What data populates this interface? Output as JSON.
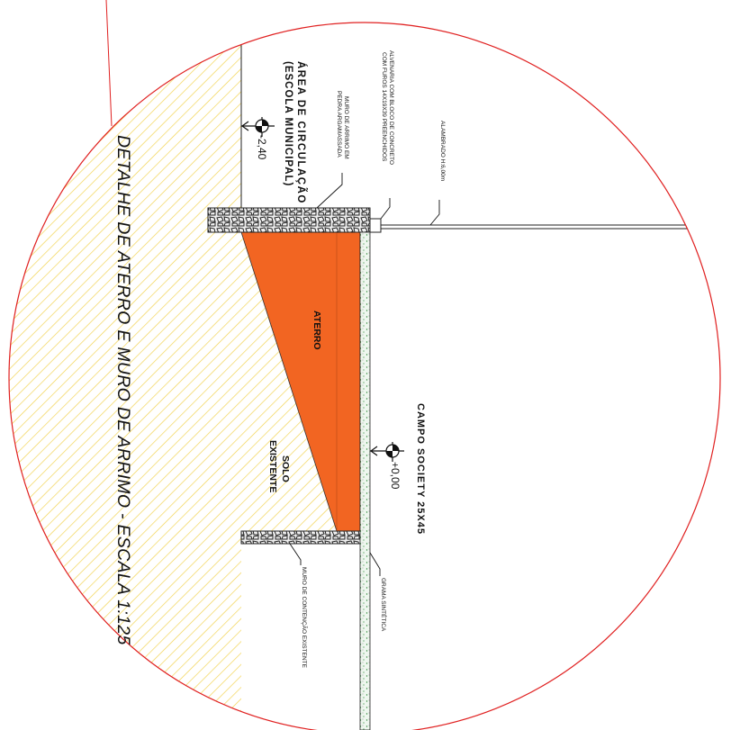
{
  "title": "DETALHE DE ATERRO E MURO DE ARRIMO - ESCALA 1:125",
  "labels": {
    "area_line1": "ÁREA DE CIRCULAÇÃO",
    "area_line2": "(ESCOLA MUNICIPAL)",
    "level_top": "-2,40",
    "level_bottom": "+0,00",
    "campo": "CAMPO SOCIETY 25X45",
    "aterro": "ATERRO",
    "solo_line1": "SOLO",
    "solo_line2": "EXISTENTE",
    "muro_arrimo_line1": "MURO DE ARRIMO EM",
    "muro_arrimo_line2": "PEDRA ARGAMASSADA",
    "alvenaria_line1": "ALVENARIA COM BLOCO DE CONCRETO",
    "alvenaria_line2": "COM FUROS 14X19X39 PREENCHIDOS",
    "alambrado": "ALAMBRADO H:6,00m",
    "grama": "GRAMA SINTÉTICA",
    "muro_contencao": "MURO DE CONTENÇÃO EXISTENTE"
  },
  "colors": {
    "aterro_fill": "#f26522",
    "soil_hatch": "#f2d24b",
    "circle_line": "#e02020",
    "grass_fill": "#e6f2e6",
    "grass_dots": "#2e8b3a",
    "stone_fill": "#f0f0f0"
  }
}
